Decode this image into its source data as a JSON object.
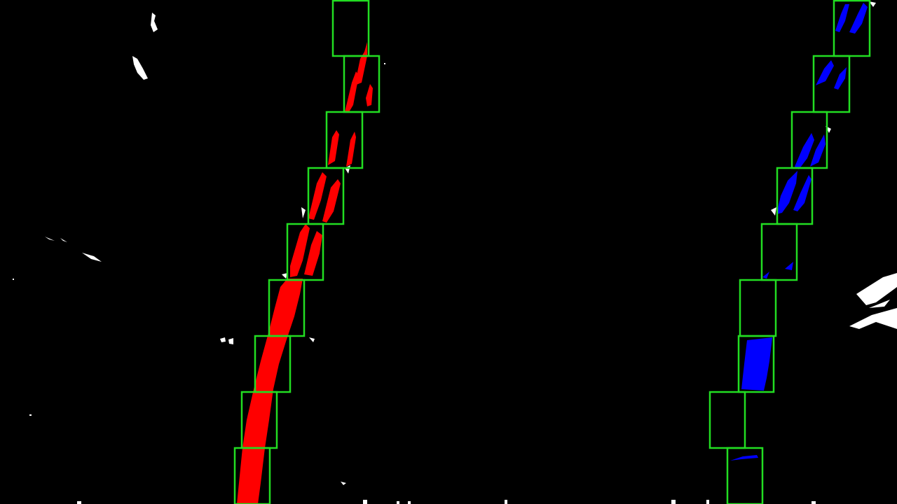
{
  "image": {
    "description_name": "sliding-window-lane-detection",
    "background_color": "#000000",
    "window_color": "#22dd22",
    "left_lane_color": "#ff0000",
    "right_lane_color": "#0000ff",
    "noise_color": "#ffffff"
  },
  "windows": {
    "count_per_lane": 9
  }
}
